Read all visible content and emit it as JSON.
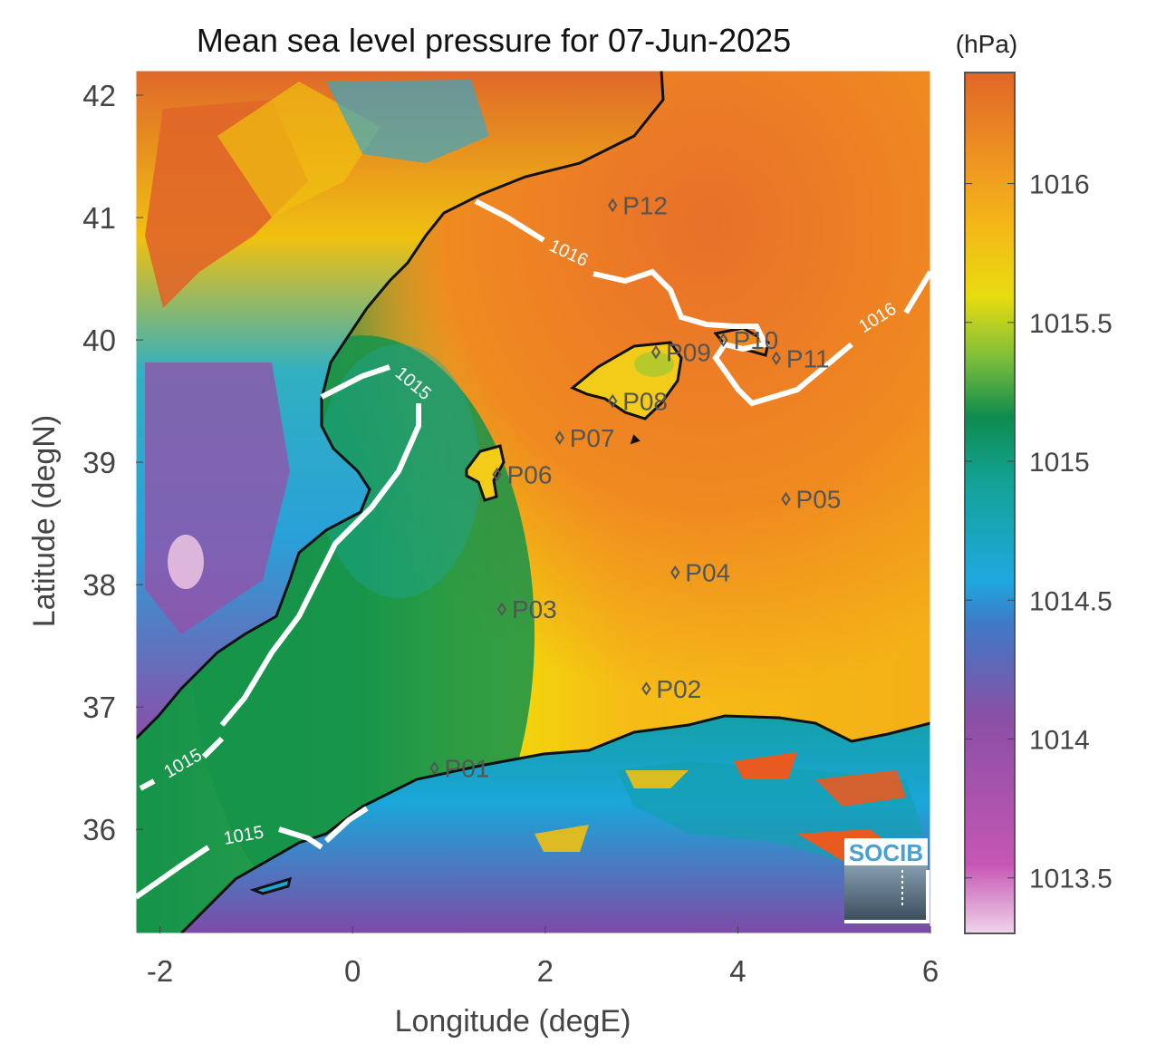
{
  "title": "Mean sea level pressure for 07-Jun-2025",
  "xlabel": "Longitude (degE)",
  "ylabel": "Latitude (degN)",
  "colorbar_unit": "(hPa)",
  "logo_text": "SOCIB",
  "x_ticks": [
    "-2",
    "0",
    "2",
    "4",
    "6"
  ],
  "y_ticks": [
    "42",
    "41",
    "40",
    "39",
    "38",
    "37",
    "36"
  ],
  "colorbar_ticks": [
    "1016",
    "1015.5",
    "1015",
    "1014.5",
    "1014",
    "1013.5"
  ],
  "contour_labels": [
    "1016",
    "1016",
    "1015",
    "1015",
    "1015"
  ],
  "points": [
    {
      "id": "P01",
      "lon": 0.85,
      "lat": 36.5
    },
    {
      "id": "P02",
      "lon": 3.05,
      "lat": 37.15
    },
    {
      "id": "P03",
      "lon": 1.55,
      "lat": 37.8
    },
    {
      "id": "P04",
      "lon": 3.35,
      "lat": 38.1
    },
    {
      "id": "P05",
      "lon": 4.5,
      "lat": 38.7
    },
    {
      "id": "P06",
      "lon": 1.5,
      "lat": 38.9
    },
    {
      "id": "P07",
      "lon": 2.15,
      "lat": 39.2
    },
    {
      "id": "P08",
      "lon": 2.7,
      "lat": 39.5
    },
    {
      "id": "P09",
      "lon": 3.15,
      "lat": 39.9
    },
    {
      "id": "P10",
      "lon": 3.85,
      "lat": 40.0
    },
    {
      "id": "P11",
      "lon": 4.4,
      "lat": 39.85
    },
    {
      "id": "P12",
      "lon": 2.7,
      "lat": 41.1
    }
  ],
  "chart_data": {
    "type": "heatmap",
    "title": "Mean sea level pressure for 07-Jun-2025",
    "xlabel": "Longitude (degE)",
    "ylabel": "Latitude (degN)",
    "xlim": [
      -2.25,
      6.0
    ],
    "ylim": [
      35.15,
      42.2
    ],
    "colorbar": {
      "label": "(hPa)",
      "range": [
        1013.3,
        1016.4
      ],
      "ticks": [
        1013.5,
        1014,
        1014.5,
        1015,
        1015.5,
        1016
      ]
    },
    "contour_levels": [
      1015,
      1016
    ],
    "colors": {
      "high": "#e8702a",
      "upper_mid": "#f5c400",
      "mid": "#1a9a50",
      "lower_mid": "#1aa6d8",
      "low": "#9a4aa8",
      "lowest": "#e8c0e0"
    }
  }
}
